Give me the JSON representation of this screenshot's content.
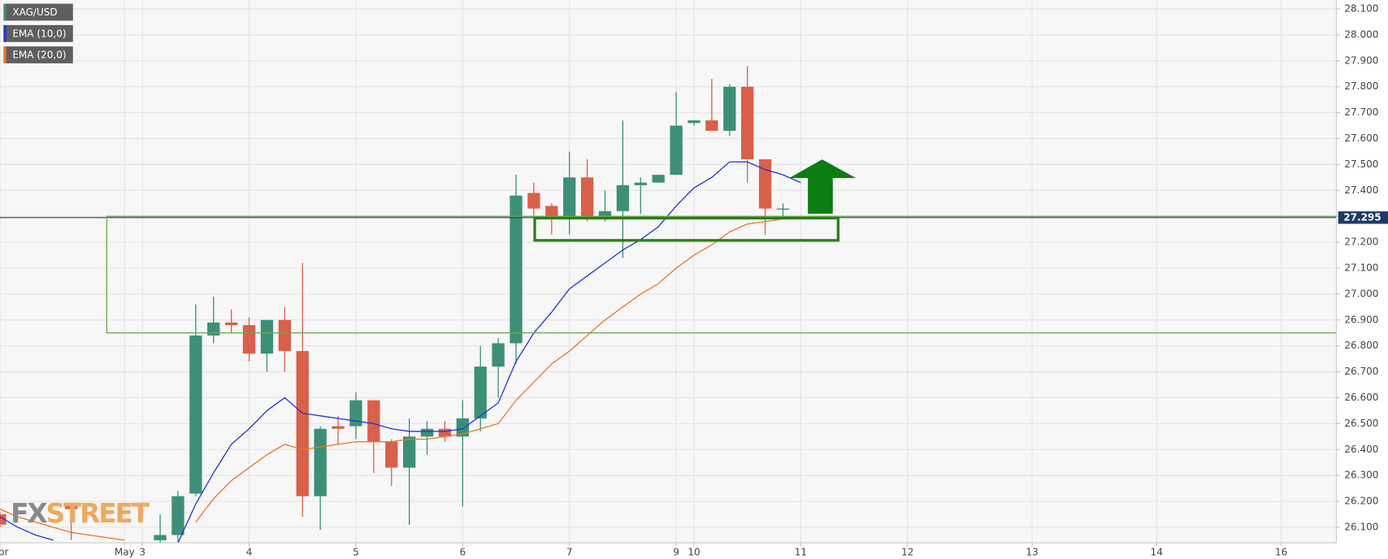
{
  "chart_data": {
    "type": "candlestick",
    "series": [
      {
        "name": "XAG/USD",
        "type": "candlestick",
        "color": "#3d8f78",
        "up_color": "#3d8f78",
        "down_color": "#d9604a",
        "x": [
          0,
          4,
          9,
          10,
          11,
          12,
          13,
          14,
          15,
          16,
          17,
          18,
          19,
          20,
          21,
          22,
          23,
          24,
          25,
          26,
          27,
          28,
          29,
          30,
          31,
          32,
          33,
          34,
          35,
          36,
          37,
          38,
          39,
          40,
          41,
          42,
          43,
          44
        ],
        "open": [
          26.15,
          26.19,
          26.05,
          26.07,
          26.23,
          26.84,
          26.89,
          26.88,
          26.77,
          26.9,
          26.78,
          26.22,
          26.49,
          26.49,
          26.59,
          26.43,
          26.33,
          26.45,
          26.48,
          26.45,
          26.52,
          26.72,
          26.81,
          27.39,
          27.34,
          27.3,
          27.45,
          27.3,
          27.32,
          27.42,
          27.43,
          27.46,
          27.66,
          27.67,
          27.63,
          27.8,
          27.52,
          27.33
        ],
        "high": [
          26.16,
          26.19,
          26.15,
          26.24,
          26.96,
          26.99,
          26.94,
          26.91,
          26.9,
          26.95,
          27.12,
          26.49,
          26.53,
          26.62,
          26.59,
          26.44,
          26.52,
          26.51,
          26.51,
          26.59,
          26.8,
          26.83,
          27.46,
          27.43,
          27.35,
          27.55,
          27.52,
          27.4,
          27.67,
          27.45,
          27.46,
          27.78,
          27.67,
          27.83,
          27.81,
          27.88,
          27.52,
          27.35
        ],
        "low": [
          26.1,
          26.05,
          26.04,
          26.04,
          26.22,
          26.81,
          26.85,
          26.74,
          26.7,
          26.7,
          26.14,
          26.09,
          26.42,
          26.44,
          26.31,
          26.26,
          26.11,
          26.38,
          26.43,
          26.18,
          26.47,
          26.6,
          26.73,
          27.3,
          27.23,
          27.23,
          27.28,
          27.28,
          27.14,
          27.31,
          27.43,
          27.46,
          27.65,
          27.63,
          27.61,
          27.43,
          27.23,
          27.3
        ],
        "close": [
          26.11,
          26.17,
          26.07,
          26.22,
          26.84,
          26.89,
          26.88,
          26.77,
          26.9,
          26.78,
          26.22,
          26.48,
          26.48,
          26.59,
          26.43,
          26.33,
          26.45,
          26.48,
          26.45,
          26.52,
          26.72,
          26.81,
          27.38,
          27.33,
          27.3,
          27.45,
          27.3,
          27.32,
          27.42,
          27.43,
          27.46,
          27.65,
          27.67,
          27.63,
          27.8,
          27.52,
          27.33,
          27.33
        ]
      },
      {
        "name": "EMA (10,0)",
        "type": "line",
        "color": "#2434d8",
        "x": [
          0,
          1,
          2,
          3,
          4,
          5,
          6,
          7,
          8,
          9,
          10,
          11,
          12,
          13,
          14,
          15,
          16,
          17,
          18,
          19,
          20,
          21,
          22,
          23,
          24,
          25,
          26,
          27,
          28,
          29,
          30,
          31,
          32,
          33,
          34,
          35,
          36,
          37,
          38,
          39,
          40,
          41,
          42,
          43,
          44,
          45
        ],
        "values": [
          26.14,
          26.1,
          26.07,
          26.05,
          null,
          null,
          null,
          null,
          null,
          null,
          26.04,
          26.19,
          26.31,
          26.42,
          26.48,
          26.55,
          26.6,
          26.54,
          26.53,
          26.52,
          26.51,
          26.5,
          26.48,
          26.47,
          26.47,
          26.47,
          26.48,
          26.53,
          26.58,
          26.74,
          26.85,
          26.93,
          27.02,
          27.07,
          27.12,
          27.17,
          27.21,
          27.26,
          27.34,
          27.41,
          27.45,
          27.51,
          27.51,
          27.48,
          27.46,
          27.43
        ]
      },
      {
        "name": "EMA (20,0)",
        "type": "line",
        "color": "#e8782a",
        "x": [
          0,
          1,
          2,
          3,
          4,
          5,
          6,
          7,
          8,
          9,
          10,
          11,
          12,
          13,
          14,
          15,
          16,
          17,
          18,
          19,
          20,
          21,
          22,
          23,
          24,
          25,
          26,
          27,
          28,
          29,
          30,
          31,
          32,
          33,
          34,
          35,
          36,
          37,
          38,
          39,
          40,
          41,
          42,
          43,
          44,
          45
        ],
        "values": [
          26.17,
          26.14,
          26.12,
          26.1,
          26.08,
          26.07,
          26.06,
          26.05,
          null,
          null,
          null,
          26.12,
          26.21,
          26.28,
          26.33,
          26.38,
          26.42,
          26.4,
          26.41,
          26.42,
          26.43,
          26.43,
          26.43,
          26.44,
          26.44,
          26.45,
          26.46,
          26.48,
          26.5,
          26.59,
          26.66,
          26.73,
          26.78,
          26.84,
          26.9,
          26.95,
          27.0,
          27.04,
          27.1,
          27.15,
          27.19,
          27.24,
          27.27,
          27.28,
          27.29,
          27.3
        ]
      }
    ],
    "last_price": 27.295,
    "last_price_color": "#1f3a68",
    "xlim": [
      0,
      75.1
    ],
    "ylim": [
      26.04,
      28.134
    ],
    "xticks": [
      {
        "value": 0,
        "label": "Apr"
      },
      {
        "value": 7,
        "label": "May"
      },
      {
        "value": 8,
        "label": "3"
      },
      {
        "value": 14,
        "label": "4"
      },
      {
        "value": 20,
        "label": "5"
      },
      {
        "value": 26,
        "label": "6"
      },
      {
        "value": 32,
        "label": "7"
      },
      {
        "value": 38,
        "label": "9"
      },
      {
        "value": 39,
        "label": "10"
      },
      {
        "value": 45,
        "label": "11"
      },
      {
        "value": 51,
        "label": "12"
      },
      {
        "value": 58,
        "label": "13"
      },
      {
        "value": 65,
        "label": "14"
      },
      {
        "value": 72,
        "label": "16"
      }
    ],
    "yticks": [
      {
        "value": 26.1,
        "label": "26.100"
      },
      {
        "value": 26.2,
        "label": "26.200"
      },
      {
        "value": 26.3,
        "label": "26.300"
      },
      {
        "value": 26.4,
        "label": "26.400"
      },
      {
        "value": 26.5,
        "label": "26.500"
      },
      {
        "value": 26.6,
        "label": "26.600"
      },
      {
        "value": 26.7,
        "label": "26.700"
      },
      {
        "value": 26.8,
        "label": "26.800"
      },
      {
        "value": 26.9,
        "label": "26.900"
      },
      {
        "value": 27.0,
        "label": "27.000"
      },
      {
        "value": 27.1,
        "label": "27.100"
      },
      {
        "value": 27.2,
        "label": "27.200"
      },
      {
        "value": 27.3,
        "label": "27.300"
      },
      {
        "value": 27.4,
        "label": "27.400"
      },
      {
        "value": 27.5,
        "label": "27.500"
      },
      {
        "value": 27.6,
        "label": "27.600"
      },
      {
        "value": 27.7,
        "label": "27.700"
      },
      {
        "value": 27.8,
        "label": "27.800"
      },
      {
        "value": 27.9,
        "label": "27.900"
      },
      {
        "value": 28.0,
        "label": "28.000"
      },
      {
        "value": 28.1,
        "label": "28.100"
      }
    ],
    "grid": true
  },
  "watermark": [
    "FX",
    "STREET"
  ]
}
